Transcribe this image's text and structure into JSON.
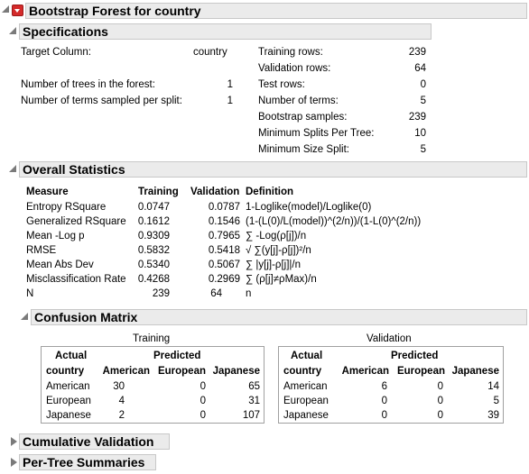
{
  "title": "Bootstrap Forest for country",
  "specifications": {
    "header": "Specifications",
    "target_label": "Target Column:",
    "target_value": "country",
    "trees_label": "Number of trees in the forest:",
    "trees_value": "1",
    "terms_sampled_label": "Number of terms sampled per split:",
    "terms_sampled_value": "1",
    "right": [
      {
        "label": "Training rows:",
        "value": "239"
      },
      {
        "label": "Validation rows:",
        "value": "64"
      },
      {
        "label": "Test rows:",
        "value": "0"
      },
      {
        "label": "Number of terms:",
        "value": "5"
      },
      {
        "label": "Bootstrap samples:",
        "value": "239"
      },
      {
        "label": "Minimum Splits Per Tree:",
        "value": "10"
      },
      {
        "label": "Minimum Size Split:",
        "value": "5"
      }
    ]
  },
  "overall": {
    "header": "Overall Statistics",
    "columns": [
      "Measure",
      "Training",
      "Validation",
      "Definition"
    ],
    "rows": [
      [
        "Entropy RSquare",
        "0.0747",
        "0.0787",
        "1-Loglike(model)/Loglike(0)"
      ],
      [
        "Generalized RSquare",
        "0.1612",
        "0.1546",
        "(1-(L(0)/L(model))^(2/n))/(1-L(0)^(2/n))"
      ],
      [
        "Mean -Log p",
        "0.9309",
        "0.7965",
        "∑ -Log(ρ[j])/n"
      ],
      [
        "RMSE",
        "0.5832",
        "0.5418",
        "√ ∑(y[j]-ρ[j])²/n"
      ],
      [
        "Mean Abs Dev",
        "0.5340",
        "0.5067",
        "∑ |y[j]-ρ[j]|/n"
      ],
      [
        "Misclassification Rate",
        "0.4268",
        "0.2969",
        "∑ (ρ[j]≠ρMax)/n"
      ],
      [
        "N",
        "239",
        "64",
        "n"
      ]
    ]
  },
  "confusion": {
    "header": "Confusion Matrix",
    "predicted_label": "Predicted",
    "actual_label": "Actual",
    "country_label": "country",
    "classes": [
      "American",
      "European",
      "Japanese"
    ],
    "tables": [
      {
        "title": "Training",
        "rows": [
          [
            "30",
            "0",
            "65"
          ],
          [
            "4",
            "0",
            "31"
          ],
          [
            "2",
            "0",
            "107"
          ]
        ]
      },
      {
        "title": "Validation",
        "rows": [
          [
            "6",
            "0",
            "14"
          ],
          [
            "0",
            "0",
            "5"
          ],
          [
            "0",
            "0",
            "39"
          ]
        ]
      }
    ]
  },
  "cumulative": {
    "header": "Cumulative Validation"
  },
  "pertree": {
    "header": "Per-Tree Summaries"
  }
}
